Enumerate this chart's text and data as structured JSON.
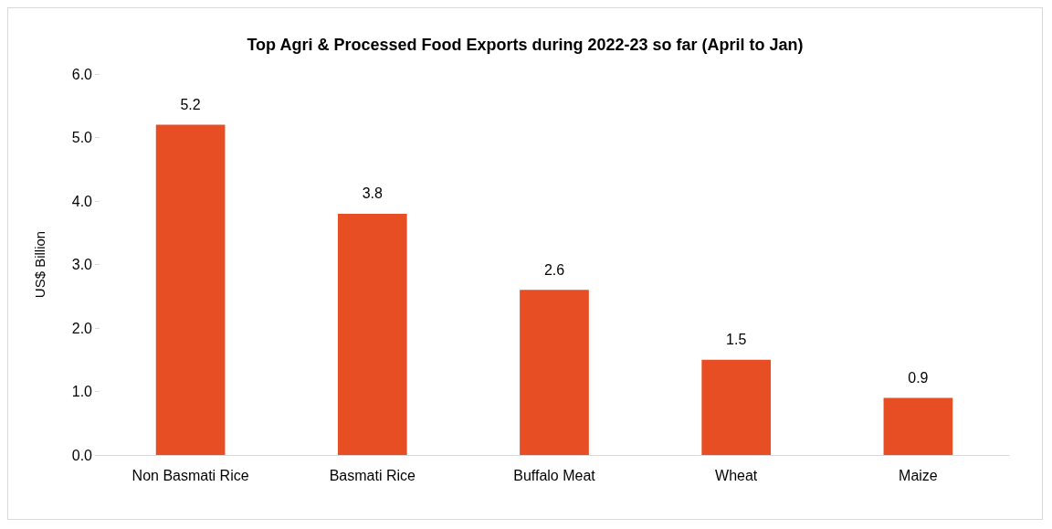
{
  "chart_data": {
    "type": "bar",
    "title": "Top Agri & Processed Food Exports during 2022-23 so far (April to Jan)",
    "ylabel": "US$ Billion",
    "categories": [
      "Non Basmati Rice",
      "Basmati Rice",
      "Buffalo Meat",
      "Wheat",
      "Maize"
    ],
    "values": [
      5.2,
      3.8,
      2.6,
      1.5,
      0.9
    ],
    "color": "#e84e24",
    "ylim": [
      0,
      6
    ],
    "yticks": [
      {
        "value": 0,
        "label": "0.0"
      },
      {
        "value": 1,
        "label": "1.0"
      },
      {
        "value": 2,
        "label": "2.0"
      },
      {
        "value": 3,
        "label": "3.0"
      },
      {
        "value": 4,
        "label": "4.0"
      },
      {
        "value": 5,
        "label": "5.0"
      },
      {
        "value": 6,
        "label": "6.0"
      }
    ],
    "grid": false,
    "data_labels": true
  }
}
